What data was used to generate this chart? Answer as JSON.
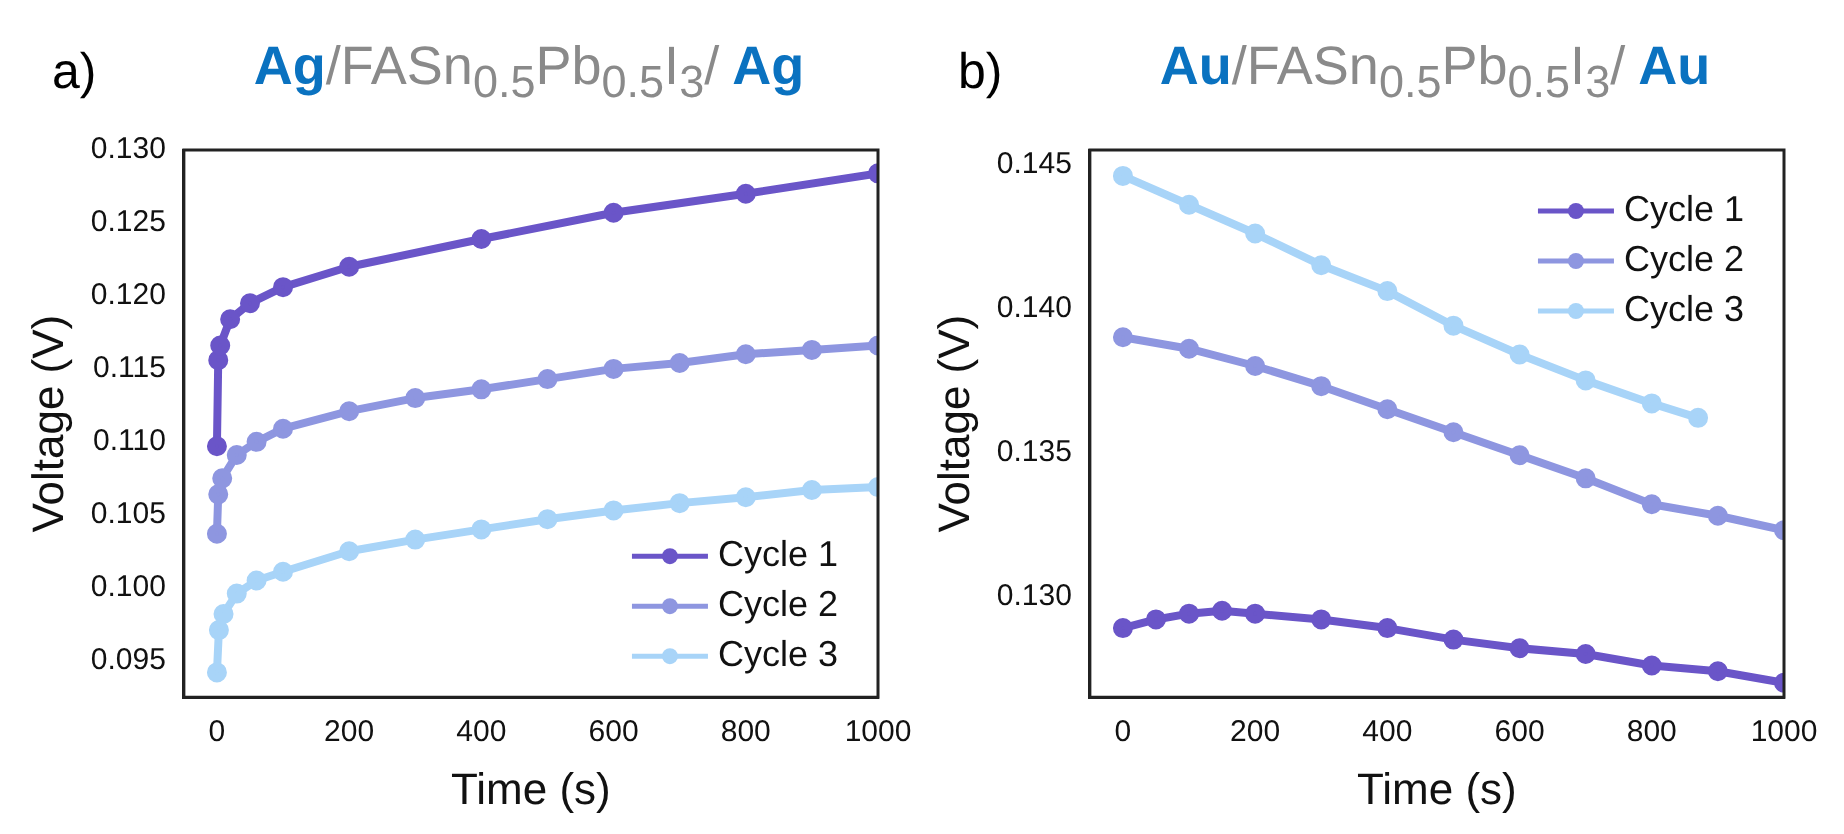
{
  "chart_data": [
    {
      "type": "line",
      "title": "Ag/FASn$_{0.5}$Pb$_{0.5}$I$_{3}$/ Ag",
      "annotations": [
        "a)"
      ],
      "xlabel": "Time (s)",
      "ylabel": "Voltage (V)",
      "xlim": [
        -50,
        1000
      ],
      "xticks": [
        0,
        200,
        400,
        600,
        800,
        1000
      ],
      "ylim": [
        0.0925,
        0.13
      ],
      "yticks": [
        {
          "value": 0.095,
          "label": "0.095"
        },
        {
          "value": 0.1,
          "label": "0.100"
        },
        0.105,
        {
          "value": 0.11,
          "label": "0.110"
        },
        0.115,
        {
          "value": 0.12,
          "label": "0.120"
        },
        0.125,
        {
          "value": 0.13,
          "label": "0.130"
        }
      ],
      "legend": "bottom right",
      "marker": "circle",
      "grid": false,
      "series": [
        {
          "name": "Cycle 1",
          "color": "#6a55c8",
          "x": [
            0,
            2,
            5,
            20,
            50,
            100,
            200,
            400,
            600,
            800,
            1000
          ],
          "values": [
            0.1097,
            0.1156,
            0.1166,
            0.1184,
            0.1195,
            0.1206,
            0.122,
            0.1239,
            0.1257,
            0.127,
            0.1284
          ]
        },
        {
          "name": "Cycle 2",
          "color": "#8e96e0",
          "x": [
            0,
            2,
            8,
            30,
            60,
            100,
            200,
            300,
            400,
            500,
            600,
            700,
            800,
            900,
            1000
          ],
          "values": [
            0.1037,
            0.1064,
            0.1075,
            0.1091,
            0.11,
            0.1109,
            0.1121,
            0.113,
            0.1136,
            0.1143,
            0.115,
            0.1154,
            0.116,
            0.1163,
            0.1166
          ]
        },
        {
          "name": "Cycle 3",
          "color": "#a8d4f8",
          "x": [
            0,
            3,
            10,
            30,
            60,
            100,
            200,
            300,
            400,
            500,
            600,
            700,
            800,
            900,
            1000
          ],
          "values": [
            0.0942,
            0.0971,
            0.0982,
            0.0996,
            0.1005,
            0.1011,
            0.1025,
            0.1033,
            0.104,
            0.1047,
            0.1053,
            0.1058,
            0.1062,
            0.1067,
            0.1069
          ]
        }
      ]
    },
    {
      "type": "line",
      "title": "Au/FASn$_{0.5}$Pb$_{0.5}$I$_{3}$/ Au",
      "annotations": [
        "b)"
      ],
      "xlabel": "Time (s)",
      "ylabel": "Voltage (V)",
      "xlim": [
        -50,
        1000
      ],
      "xticks": [
        0,
        200,
        400,
        600,
        800,
        1000
      ],
      "ylim": [
        0.1265,
        0.1455
      ],
      "yticks": [
        {
          "value": 0.13,
          "label": "0.130"
        },
        0.135,
        {
          "value": 0.14,
          "label": "0.140"
        },
        0.145
      ],
      "legend": "top right",
      "marker": "circle",
      "grid": false,
      "series": [
        {
          "name": "Cycle 1",
          "color": "#6a55c8",
          "x": [
            0,
            50,
            100,
            150,
            200,
            300,
            400,
            500,
            600,
            700,
            800,
            900,
            1000
          ],
          "values": [
            0.1289,
            0.1292,
            0.1294,
            0.1295,
            0.1294,
            0.1292,
            0.1289,
            0.1285,
            0.1282,
            0.128,
            0.1276,
            0.1274,
            0.127
          ]
        },
        {
          "name": "Cycle 2",
          "color": "#8e96e0",
          "x": [
            0,
            100,
            200,
            300,
            400,
            500,
            600,
            700,
            800,
            900,
            1000
          ],
          "values": [
            0.139,
            0.1386,
            0.138,
            0.1373,
            0.1365,
            0.1357,
            0.1349,
            0.1341,
            0.1332,
            0.1328,
            0.1323
          ]
        },
        {
          "name": "Cycle 3",
          "color": "#a8d4f8",
          "x": [
            0,
            100,
            200,
            300,
            400,
            500,
            600,
            700,
            800,
            870
          ],
          "values": [
            0.1446,
            0.1436,
            0.1426,
            0.1415,
            0.1406,
            0.1394,
            0.1384,
            0.1375,
            0.1367,
            0.1362
          ]
        }
      ]
    }
  ]
}
